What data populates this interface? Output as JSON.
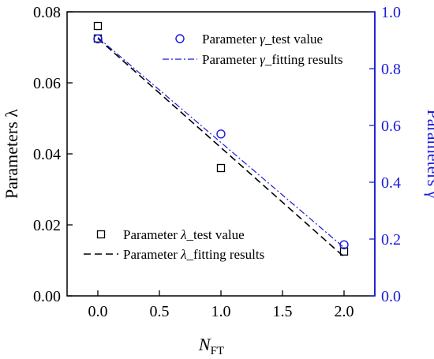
{
  "chart_data": {
    "type": "scatter",
    "xlabel_main": "N",
    "xlabel_sub": "FT",
    "ylabel_left": "Parameters λ",
    "ylabel_right": "Parameters γ",
    "xlim": [
      -0.25,
      2.25
    ],
    "ylim_left": [
      0,
      0.08
    ],
    "ylim_right": [
      0,
      1.0
    ],
    "x_ticks": [
      "0.0",
      "0.5",
      "1.0",
      "1.5",
      "2.0"
    ],
    "x_tick_values": [
      0,
      0.5,
      1.0,
      1.5,
      2.0
    ],
    "y_left_ticks": [
      "0.00",
      "0.02",
      "0.04",
      "0.06",
      "0.08"
    ],
    "y_left_tick_values": [
      0,
      0.02,
      0.04,
      0.06,
      0.08
    ],
    "y_right_ticks": [
      "0.0",
      "0.2",
      "0.4",
      "0.6",
      "0.8",
      "1.0"
    ],
    "y_right_tick_values": [
      0,
      0.2,
      0.4,
      0.6,
      0.8,
      1.0
    ],
    "colors": {
      "lambda": "#000000",
      "gamma": "#1a1adb",
      "right_axis": "#1a1adb"
    },
    "series": [
      {
        "name": "Parameter λ_test value",
        "axis": "left",
        "kind": "points",
        "marker": "square",
        "x": [
          0,
          0,
          1,
          2
        ],
        "y": [
          0.076,
          0.0725,
          0.036,
          0.0125
        ]
      },
      {
        "name": "Parameter λ_fitting results",
        "axis": "left",
        "kind": "line",
        "dash": "dashed",
        "x": [
          0,
          2
        ],
        "y": [
          0.0725,
          0.011
        ]
      },
      {
        "name": "Parameter γ_test value",
        "axis": "right",
        "kind": "points",
        "marker": "circle",
        "x": [
          0,
          1,
          2
        ],
        "y": [
          0.905,
          0.57,
          0.18
        ]
      },
      {
        "name": "Parameter γ_fitting results",
        "axis": "right",
        "kind": "line",
        "dash": "dashdot",
        "x": [
          0,
          2
        ],
        "y": [
          0.91,
          0.17
        ]
      }
    ]
  }
}
